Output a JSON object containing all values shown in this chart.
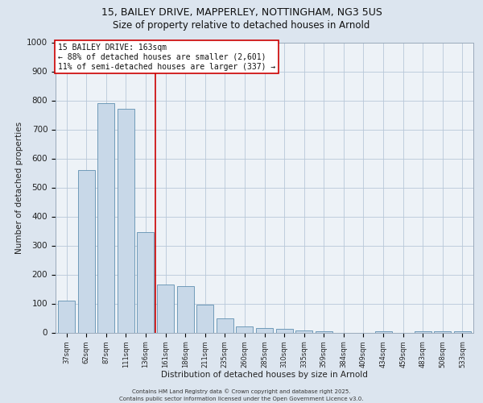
{
  "title_line1": "15, BAILEY DRIVE, MAPPERLEY, NOTTINGHAM, NG3 5US",
  "title_line2": "Size of property relative to detached houses in Arnold",
  "xlabel": "Distribution of detached houses by size in Arnold",
  "ylabel": "Number of detached properties",
  "categories": [
    "37sqm",
    "62sqm",
    "87sqm",
    "111sqm",
    "136sqm",
    "161sqm",
    "186sqm",
    "211sqm",
    "235sqm",
    "260sqm",
    "285sqm",
    "310sqm",
    "335sqm",
    "359sqm",
    "384sqm",
    "409sqm",
    "434sqm",
    "459sqm",
    "483sqm",
    "508sqm",
    "533sqm"
  ],
  "values": [
    110,
    560,
    790,
    770,
    345,
    165,
    160,
    95,
    50,
    20,
    15,
    12,
    6,
    5,
    0,
    0,
    5,
    0,
    5,
    5,
    5
  ],
  "bar_color": "#c8d8e8",
  "bar_edge_color": "#6090b0",
  "vline_position": 4.5,
  "vline_color": "#cc0000",
  "annotation_text": "15 BAILEY DRIVE: 163sqm\n← 88% of detached houses are smaller (2,601)\n11% of semi-detached houses are larger (337) →",
  "annotation_box_facecolor": "#ffffff",
  "annotation_box_edgecolor": "#cc0000",
  "ylim": [
    0,
    1000
  ],
  "yticks": [
    0,
    100,
    200,
    300,
    400,
    500,
    600,
    700,
    800,
    900,
    1000
  ],
  "footer_line1": "Contains HM Land Registry data © Crown copyright and database right 2025.",
  "footer_line2": "Contains public sector information licensed under the Open Government Licence v3.0.",
  "fig_bg_color": "#dce5ef",
  "plot_bg_color": "#edf2f7",
  "grid_color": "#b8c8d8",
  "title1_fontsize": 9,
  "title2_fontsize": 8.5,
  "tick_fontsize": 6,
  "ytick_fontsize": 7.5,
  "label_fontsize": 7.5,
  "annotation_fontsize": 7,
  "footer_fontsize": 5
}
